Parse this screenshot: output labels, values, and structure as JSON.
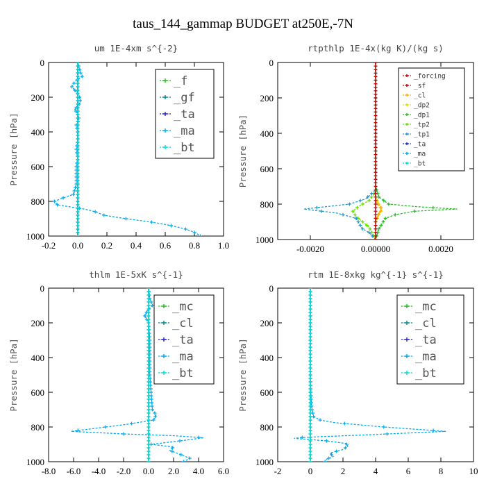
{
  "title": "taus_144_gammap  BUDGET at250E,-7N",
  "chart_data": [
    {
      "type": "line",
      "title": "um  1E-4xm s^{-2}",
      "ylabel": "Pressure [hPa]",
      "xlim": [
        -0.2,
        1.0
      ],
      "ylim": [
        1000,
        0
      ],
      "xticks": [
        "-0.2",
        "0.0",
        "0.2",
        "0.4",
        "0.6",
        "0.8",
        "1.0"
      ],
      "xtick_values": [
        -0.2,
        0.0,
        0.2,
        0.4,
        0.6,
        0.8,
        1.0
      ],
      "yticks": [
        "0",
        "200",
        "400",
        "600",
        "800",
        "1000"
      ],
      "ytick_values": [
        0,
        200,
        400,
        600,
        800,
        1000
      ],
      "legend": [
        {
          "name": "_f",
          "color": "#22bb22"
        },
        {
          "name": "_gf",
          "color": "#008888"
        },
        {
          "name": "_ta",
          "color": "#2222cc"
        },
        {
          "name": "_ma",
          "color": "#00aaee"
        },
        {
          "name": "_bt",
          "color": "#00dddd"
        }
      ],
      "series": [
        {
          "name": "_f",
          "color": "#22bb22",
          "points": [
            [
              0,
              0
            ],
            [
              0,
              1000
            ]
          ]
        },
        {
          "name": "_gf",
          "color": "#008888",
          "points": [
            [
              0,
              0
            ],
            [
              0,
              1000
            ]
          ]
        },
        {
          "name": "_ta",
          "color": "#2222cc",
          "points": [
            [
              0,
              0
            ],
            [
              0,
              1000
            ]
          ]
        },
        {
          "name": "_ma",
          "color": "#00aaee",
          "points": [
            [
              0.0,
              0
            ],
            [
              0.01,
              30
            ],
            [
              0.02,
              60
            ],
            [
              0.03,
              80
            ],
            [
              -0.02,
              110
            ],
            [
              -0.04,
              140
            ],
            [
              -0.01,
              170
            ],
            [
              0.02,
              210
            ],
            [
              0.01,
              240
            ],
            [
              -0.02,
              270
            ],
            [
              0.0,
              300
            ],
            [
              0.01,
              330
            ],
            [
              -0.01,
              360
            ],
            [
              0.0,
              400
            ],
            [
              0.0,
              450
            ],
            [
              -0.01,
              500
            ],
            [
              0.0,
              550
            ],
            [
              -0.01,
              600
            ],
            [
              -0.01,
              650
            ],
            [
              -0.01,
              700
            ],
            [
              -0.02,
              730
            ],
            [
              -0.03,
              760
            ],
            [
              -0.1,
              780
            ],
            [
              -0.16,
              800
            ],
            [
              -0.14,
              820
            ],
            [
              0.05,
              845
            ],
            [
              0.12,
              860
            ],
            [
              0.18,
              880
            ],
            [
              0.33,
              900
            ],
            [
              0.47,
              915
            ],
            [
              0.58,
              930
            ],
            [
              0.67,
              945
            ],
            [
              0.74,
              960
            ],
            [
              0.79,
              975
            ],
            [
              0.82,
              988
            ],
            [
              0.84,
              1000
            ]
          ]
        },
        {
          "name": "_bt",
          "color": "#00dddd",
          "points": [
            [
              0,
              0
            ],
            [
              0,
              1000
            ]
          ]
        }
      ]
    },
    {
      "type": "line",
      "title": "rtpthlp  1E-4x(kg K)/(kg s)",
      "ylabel": "Pressure [hPa]",
      "xlim": [
        -0.003,
        0.003
      ],
      "ylim": [
        1000,
        0
      ],
      "xticks": [
        "-0.0020",
        "0.00000",
        "0.0020"
      ],
      "xtick_values": [
        -0.002,
        0.0,
        0.002
      ],
      "yticks": [
        "0",
        "200",
        "400",
        "600",
        "800",
        "1000"
      ],
      "ytick_values": [
        0,
        200,
        400,
        600,
        800,
        1000
      ],
      "legend": [
        {
          "name": "_forcing",
          "color": "#cc0000"
        },
        {
          "name": "_sf",
          "color": "#cc0000"
        },
        {
          "name": "_cl",
          "color": "#ffaa00"
        },
        {
          "name": "_dp2",
          "color": "#dddd00"
        },
        {
          "name": "_dp1",
          "color": "#22bb22"
        },
        {
          "name": "_tp2",
          "color": "#66dd00"
        },
        {
          "name": "_tp1",
          "color": "#2299cc"
        },
        {
          "name": "_ta",
          "color": "#2222cc"
        },
        {
          "name": "_ma",
          "color": "#00aaee"
        },
        {
          "name": "_bt",
          "color": "#00dddd"
        }
      ],
      "series": [
        {
          "name": "_dp1",
          "color": "#22bb22",
          "points": [
            [
              0,
              0
            ],
            [
              0,
              700
            ],
            [
              0.0001,
              760
            ],
            [
              0.0004,
              800
            ],
            [
              0.0013,
              815
            ],
            [
              0.0025,
              828
            ],
            [
              0.0012,
              840
            ],
            [
              0.0006,
              860
            ],
            [
              0.0003,
              880
            ],
            [
              0.0002,
              910
            ],
            [
              0.0001,
              940
            ],
            [
              0,
              1000
            ]
          ]
        },
        {
          "name": "_dp2",
          "color": "#dddd00",
          "points": [
            [
              0,
              0
            ],
            [
              0,
              760
            ],
            [
              0.0001,
              800
            ],
            [
              0.0002,
              828
            ],
            [
              0.0001,
              860
            ],
            [
              0,
              900
            ],
            [
              0,
              1000
            ]
          ]
        },
        {
          "name": "_cl",
          "color": "#ffaa00",
          "points": [
            [
              0,
              0
            ],
            [
              0,
              780
            ],
            [
              0.0001,
              810
            ],
            [
              0.0002,
              830
            ],
            [
              0.0001,
              850
            ],
            [
              0,
              900
            ],
            [
              0,
              1000
            ]
          ]
        },
        {
          "name": "_tp2",
          "color": "#66dd00",
          "points": [
            [
              0,
              0
            ],
            [
              0,
              730
            ],
            [
              -0.0002,
              780
            ],
            [
              -0.0005,
              810
            ],
            [
              -0.0007,
              840
            ],
            [
              -0.0006,
              870
            ],
            [
              -0.0004,
              900
            ],
            [
              -0.0002,
              930
            ],
            [
              0,
              1000
            ]
          ]
        },
        {
          "name": "_tp1",
          "color": "#2299cc",
          "points": [
            [
              0,
              0
            ],
            [
              0,
              720
            ],
            [
              -0.0003,
              770
            ],
            [
              -0.0008,
              800
            ],
            [
              -0.0022,
              828
            ],
            [
              -0.0012,
              850
            ],
            [
              -0.0006,
              880
            ],
            [
              -0.0005,
              910
            ],
            [
              -0.0004,
              940
            ],
            [
              -0.0002,
              960
            ],
            [
              0,
              1000
            ]
          ]
        },
        {
          "name": "_ma",
          "color": "#00aaee",
          "points": [
            [
              0,
              0
            ],
            [
              0,
              1000
            ]
          ]
        },
        {
          "name": "_forcing",
          "color": "#cc0000",
          "points": [
            [
              0,
              0
            ],
            [
              0,
              1000
            ]
          ]
        }
      ]
    },
    {
      "type": "line",
      "title": "thlm  1E-5xK s^{-1}",
      "ylabel": "Pressure [hPa]",
      "xlim": [
        -8.0,
        6.0
      ],
      "ylim": [
        1000,
        0
      ],
      "xticks": [
        "-8.0",
        "-6.0",
        "-4.0",
        "-2.0",
        "0.0",
        "2.0",
        "4.0",
        "6.0"
      ],
      "xtick_values": [
        -8,
        -6,
        -4,
        -2,
        0,
        2,
        4,
        6
      ],
      "yticks": [
        "0",
        "200",
        "400",
        "600",
        "800",
        "1000"
      ],
      "ytick_values": [
        0,
        200,
        400,
        600,
        800,
        1000
      ],
      "legend": [
        {
          "name": "_mc",
          "color": "#22bb22"
        },
        {
          "name": "_cl",
          "color": "#008888"
        },
        {
          "name": "_ta",
          "color": "#2222cc"
        },
        {
          "name": "_ma",
          "color": "#00aaee"
        },
        {
          "name": "_bt",
          "color": "#00dddd"
        }
      ],
      "series": [
        {
          "name": "_mc",
          "color": "#22bb22",
          "points": [
            [
              0,
              0
            ],
            [
              0,
              1000
            ]
          ]
        },
        {
          "name": "_cl",
          "color": "#008888",
          "points": [
            [
              0,
              0
            ],
            [
              0,
              1000
            ]
          ]
        },
        {
          "name": "_ma",
          "color": "#00aaee",
          "points": [
            [
              0.0,
              0
            ],
            [
              0.1,
              60
            ],
            [
              0.3,
              100
            ],
            [
              -0.1,
              130
            ],
            [
              -0.3,
              160
            ],
            [
              0.0,
              200
            ],
            [
              0.1,
              300
            ],
            [
              0.1,
              400
            ],
            [
              0.1,
              500
            ],
            [
              0.2,
              600
            ],
            [
              0.3,
              700
            ],
            [
              0.6,
              730
            ],
            [
              0.4,
              760
            ],
            [
              -1.8,
              785
            ],
            [
              -4.0,
              805
            ],
            [
              -6.2,
              825
            ],
            [
              -2.0,
              840
            ],
            [
              2.0,
              850
            ],
            [
              4.4,
              862
            ],
            [
              2.5,
              880
            ],
            [
              0.2,
              900
            ],
            [
              2.0,
              915
            ],
            [
              1.7,
              935
            ],
            [
              2.6,
              960
            ],
            [
              3.3,
              980
            ],
            [
              2.8,
              1000
            ]
          ]
        },
        {
          "name": "_bt",
          "color": "#00dddd",
          "points": [
            [
              0,
              0
            ],
            [
              0,
              1000
            ]
          ]
        }
      ]
    },
    {
      "type": "line",
      "title": "rtm  1E-8xkg kg^{-1} s^{-1}",
      "ylabel": "Pressure [hPa]",
      "xlim": [
        -2,
        10
      ],
      "ylim": [
        1000,
        0
      ],
      "xticks": [
        "-2",
        "0",
        "2",
        "4",
        "6",
        "8",
        "10"
      ],
      "xtick_values": [
        -2,
        0,
        2,
        4,
        6,
        8,
        10
      ],
      "yticks": [
        "0",
        "200",
        "400",
        "600",
        "800",
        "1000"
      ],
      "ytick_values": [
        0,
        200,
        400,
        600,
        800,
        1000
      ],
      "legend": [
        {
          "name": "_mc",
          "color": "#22bb22"
        },
        {
          "name": "_cl",
          "color": "#008888"
        },
        {
          "name": "_ta",
          "color": "#2222cc"
        },
        {
          "name": "_ma",
          "color": "#00aaee"
        },
        {
          "name": "_bt",
          "color": "#00dddd"
        }
      ],
      "series": [
        {
          "name": "_mc",
          "color": "#22bb22",
          "points": [
            [
              0,
              0
            ],
            [
              0,
              1000
            ]
          ]
        },
        {
          "name": "_cl",
          "color": "#008888",
          "points": [
            [
              0,
              0
            ],
            [
              0,
              1000
            ]
          ]
        },
        {
          "name": "_ma",
          "color": "#00aaee",
          "points": [
            [
              0.0,
              0
            ],
            [
              0.0,
              300
            ],
            [
              0.0,
              500
            ],
            [
              0.05,
              650
            ],
            [
              0.1,
              700
            ],
            [
              0.2,
              740
            ],
            [
              0.6,
              760
            ],
            [
              1.5,
              775
            ],
            [
              4.5,
              800
            ],
            [
              8.3,
              825
            ],
            [
              3.5,
              845
            ],
            [
              -0.5,
              860
            ],
            [
              -1.0,
              865
            ],
            [
              1.0,
              880
            ],
            [
              2.2,
              895
            ],
            [
              2.3,
              910
            ],
            [
              2.0,
              930
            ],
            [
              1.2,
              950
            ],
            [
              1.4,
              970
            ],
            [
              1.0,
              985
            ],
            [
              0.9,
              1000
            ]
          ]
        },
        {
          "name": "_bt",
          "color": "#00dddd",
          "points": [
            [
              0,
              0
            ],
            [
              0,
              1000
            ]
          ]
        }
      ]
    }
  ]
}
